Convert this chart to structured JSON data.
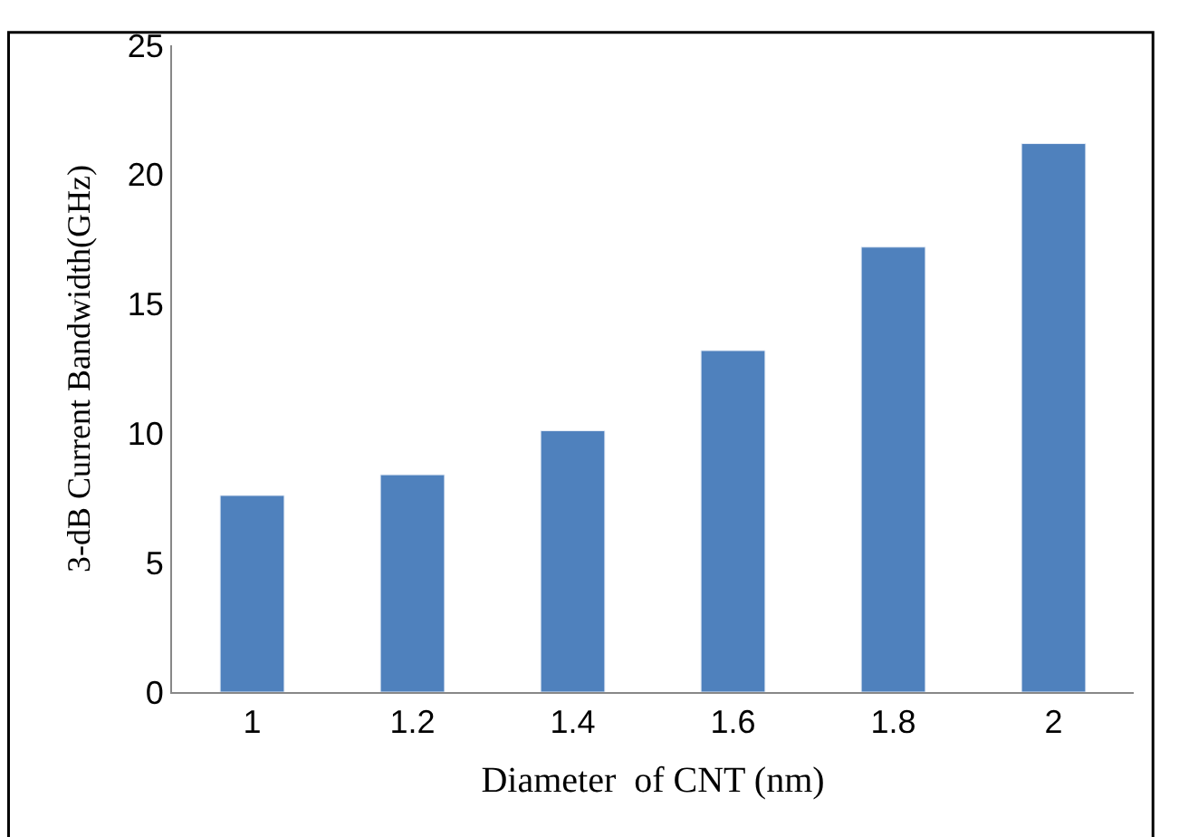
{
  "chart_data": {
    "type": "bar",
    "xlabel": "Diameter  of CNT (nm)",
    "ylabel": "3-dB Current Bandwidth(GHz)",
    "categories": [
      "1",
      "1.2",
      "1.4",
      "1.6",
      "1.8",
      "2"
    ],
    "values": [
      7.6,
      8.4,
      10.1,
      13.2,
      17.2,
      21.2
    ],
    "color": "#4f81bd",
    "ylim": [
      0,
      25
    ],
    "yticks": [
      0,
      5,
      10,
      15,
      20,
      25
    ]
  }
}
